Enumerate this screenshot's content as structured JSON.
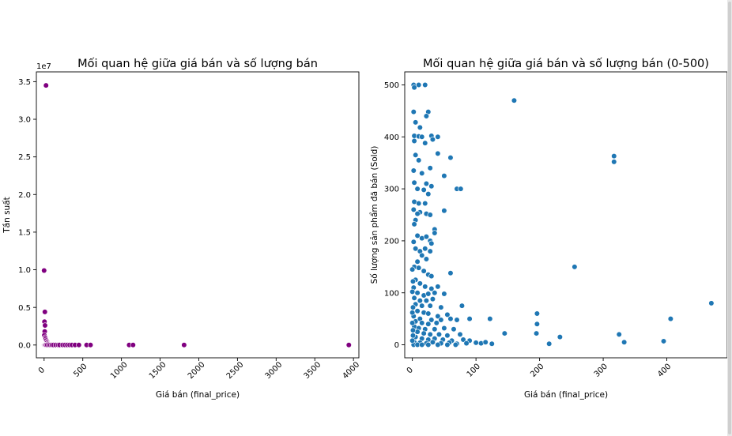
{
  "chart_data": [
    {
      "type": "scatter",
      "title": "Mối quan hệ giữa giá bán và số lượng bán",
      "xlabel": "Giá bán (final_price)",
      "ylabel": "Tần suất",
      "offset_label": "1e7",
      "xlim": [
        -100,
        4070
      ],
      "ylim": [
        -1.7,
        36.3
      ],
      "xticks": [
        0,
        500,
        1000,
        1500,
        2000,
        2500,
        3000,
        3500,
        4000
      ],
      "xtick_labels": [
        "0",
        "500",
        "1000",
        "1500",
        "2000",
        "2500",
        "3000",
        "3500",
        "4000"
      ],
      "yticks": [
        0,
        5,
        10,
        15,
        20,
        25,
        30,
        35
      ],
      "ytick_labels": [
        "0.0",
        "0.5",
        "1.0",
        "1.5",
        "2.0",
        "2.5",
        "3.0",
        "3.5"
      ],
      "grid": false,
      "color": "#800080",
      "points": [
        [
          25,
          34.5
        ],
        [
          0,
          9.9
        ],
        [
          10,
          4.4
        ],
        [
          5,
          3.1
        ],
        [
          12,
          2.6
        ],
        [
          8,
          1.8
        ],
        [
          3,
          1.3
        ],
        [
          15,
          1.0
        ],
        [
          20,
          0.8
        ],
        [
          30,
          0.6
        ],
        [
          40,
          0.4
        ],
        [
          35,
          0.3
        ],
        [
          45,
          0.15
        ],
        [
          0,
          0
        ],
        [
          5,
          0
        ],
        [
          10,
          0
        ],
        [
          18,
          0
        ],
        [
          25,
          0
        ],
        [
          40,
          0
        ],
        [
          60,
          0
        ],
        [
          80,
          0
        ],
        [
          100,
          0
        ],
        [
          120,
          0
        ],
        [
          150,
          0
        ],
        [
          180,
          0
        ],
        [
          200,
          0
        ],
        [
          240,
          0
        ],
        [
          270,
          0
        ],
        [
          300,
          0
        ],
        [
          330,
          0
        ],
        [
          360,
          0
        ],
        [
          400,
          0
        ],
        [
          450,
          0
        ],
        [
          550,
          0
        ],
        [
          600,
          0
        ],
        [
          1100,
          0
        ],
        [
          1150,
          0
        ],
        [
          1810,
          0
        ],
        [
          3940,
          0
        ]
      ]
    },
    {
      "type": "scatter",
      "title": "Mối quan hệ giữa giá bán và số lượng bán (0-500)",
      "xlabel": "Giá bán (final_price)",
      "ylabel": "Số lượng sản phẩm đã bán (Sold)",
      "xlim": [
        -12,
        495
      ],
      "ylim": [
        -25,
        525
      ],
      "xticks": [
        0,
        100,
        200,
        300,
        400
      ],
      "xtick_labels": [
        "0",
        "100",
        "200",
        "300",
        "400"
      ],
      "yticks": [
        0,
        100,
        200,
        300,
        400,
        500
      ],
      "ytick_labels": [
        "0",
        "100",
        "200",
        "300",
        "400",
        "500"
      ],
      "grid": false,
      "color": "#1f77b4",
      "points": [
        [
          2,
          500
        ],
        [
          10,
          500
        ],
        [
          20,
          500
        ],
        [
          3,
          495
        ],
        [
          160,
          470
        ],
        [
          2,
          448
        ],
        [
          25,
          448
        ],
        [
          22,
          440
        ],
        [
          5,
          428
        ],
        [
          12,
          418
        ],
        [
          3,
          402
        ],
        [
          10,
          401
        ],
        [
          15,
          400
        ],
        [
          30,
          402
        ],
        [
          40,
          400
        ],
        [
          3,
          392
        ],
        [
          20,
          388
        ],
        [
          32,
          395
        ],
        [
          40,
          368
        ],
        [
          5,
          365
        ],
        [
          10,
          355
        ],
        [
          60,
          360
        ],
        [
          28,
          340
        ],
        [
          2,
          335
        ],
        [
          15,
          330
        ],
        [
          50,
          325
        ],
        [
          3,
          312
        ],
        [
          22,
          310
        ],
        [
          30,
          305
        ],
        [
          8,
          300
        ],
        [
          18,
          298
        ],
        [
          25,
          290
        ],
        [
          70,
          300
        ],
        [
          76,
          300
        ],
        [
          317,
          363
        ],
        [
          317,
          352
        ],
        [
          3,
          275
        ],
        [
          10,
          272
        ],
        [
          20,
          272
        ],
        [
          2,
          260
        ],
        [
          12,
          255
        ],
        [
          8,
          252
        ],
        [
          22,
          252
        ],
        [
          28,
          250
        ],
        [
          50,
          258
        ],
        [
          5,
          240
        ],
        [
          3,
          232
        ],
        [
          35,
          222
        ],
        [
          35,
          215
        ],
        [
          8,
          210
        ],
        [
          15,
          205
        ],
        [
          22,
          208
        ],
        [
          28,
          200
        ],
        [
          2,
          198
        ],
        [
          30,
          195
        ],
        [
          5,
          185
        ],
        [
          20,
          185
        ],
        [
          12,
          180
        ],
        [
          28,
          180
        ],
        [
          15,
          172
        ],
        [
          8,
          160
        ],
        [
          22,
          165
        ],
        [
          3,
          150
        ],
        [
          10,
          148
        ],
        [
          18,
          142
        ],
        [
          25,
          135
        ],
        [
          30,
          132
        ],
        [
          60,
          138
        ],
        [
          255,
          150
        ],
        [
          5,
          125
        ],
        [
          12,
          118
        ],
        [
          2,
          110
        ],
        [
          20,
          112
        ],
        [
          30,
          108
        ],
        [
          40,
          112
        ],
        [
          8,
          100
        ],
        [
          18,
          95
        ],
        [
          25,
          98
        ],
        [
          35,
          100
        ],
        [
          50,
          98
        ],
        [
          3,
          90
        ],
        [
          12,
          85
        ],
        [
          22,
          85
        ],
        [
          32,
          88
        ],
        [
          5,
          78
        ],
        [
          15,
          75
        ],
        [
          28,
          75
        ],
        [
          45,
          72
        ],
        [
          78,
          75
        ],
        [
          8,
          65
        ],
        [
          18,
          62
        ],
        [
          25,
          60
        ],
        [
          40,
          55
        ],
        [
          55,
          58
        ],
        [
          196,
          60
        ],
        [
          2,
          55
        ],
        [
          12,
          50
        ],
        [
          30,
          48
        ],
        [
          45,
          48
        ],
        [
          60,
          50
        ],
        [
          70,
          48
        ],
        [
          90,
          50
        ],
        [
          122,
          50
        ],
        [
          406,
          50
        ],
        [
          470,
          80
        ],
        [
          5,
          45
        ],
        [
          15,
          42
        ],
        [
          25,
          40
        ],
        [
          38,
          42
        ],
        [
          196,
          40
        ],
        [
          3,
          35
        ],
        [
          10,
          32
        ],
        [
          20,
          30
        ],
        [
          35,
          30
        ],
        [
          50,
          32
        ],
        [
          65,
          30
        ],
        [
          8,
          25
        ],
        [
          18,
          22
        ],
        [
          28,
          20
        ],
        [
          42,
          20
        ],
        [
          55,
          18
        ],
        [
          75,
          20
        ],
        [
          145,
          22
        ],
        [
          195,
          22
        ],
        [
          325,
          20
        ],
        [
          5,
          15
        ],
        [
          15,
          12
        ],
        [
          25,
          10
        ],
        [
          35,
          12
        ],
        [
          48,
          10
        ],
        [
          62,
          8
        ],
        [
          80,
          10
        ],
        [
          90,
          8
        ],
        [
          232,
          15
        ],
        [
          3,
          5
        ],
        [
          12,
          4
        ],
        [
          22,
          3
        ],
        [
          32,
          5
        ],
        [
          45,
          3
        ],
        [
          58,
          4
        ],
        [
          70,
          2
        ],
        [
          85,
          3
        ],
        [
          100,
          4
        ],
        [
          108,
          3
        ],
        [
          115,
          5
        ],
        [
          125,
          2
        ],
        [
          215,
          2
        ],
        [
          333,
          5
        ],
        [
          395,
          7
        ],
        [
          2,
          0
        ],
        [
          8,
          0
        ],
        [
          15,
          0
        ],
        [
          25,
          0
        ],
        [
          40,
          0
        ],
        [
          55,
          0
        ],
        [
          68,
          0
        ],
        [
          0,
          8
        ],
        [
          1,
          18
        ],
        [
          1,
          28
        ],
        [
          0,
          42
        ],
        [
          0,
          62
        ],
        [
          1,
          72
        ],
        [
          0,
          102
        ],
        [
          1,
          122
        ],
        [
          0,
          145
        ]
      ]
    }
  ]
}
